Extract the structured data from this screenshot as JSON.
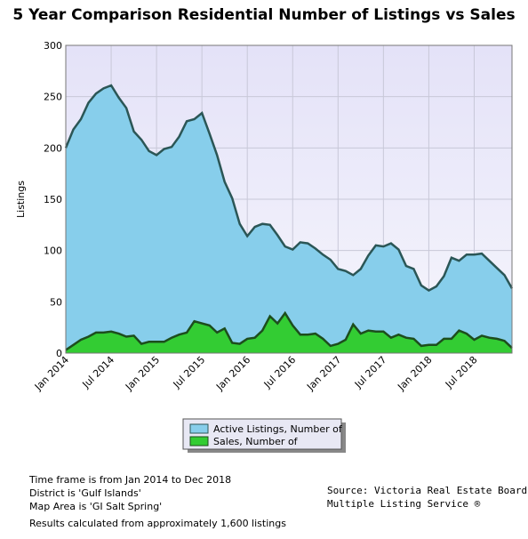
{
  "chart_data": {
    "type": "area",
    "title": "5 Year Comparison Residential Number of Listings vs Sales",
    "y_label": "Listings",
    "categories": [
      "Jan 2014",
      null,
      null,
      null,
      null,
      null,
      "Jul 2014",
      null,
      null,
      null,
      null,
      null,
      "Jan 2015",
      null,
      null,
      null,
      null,
      null,
      "Jul 2015",
      null,
      null,
      null,
      null,
      null,
      "Jan 2016",
      null,
      null,
      null,
      null,
      null,
      "Jul 2016",
      null,
      null,
      null,
      null,
      null,
      "Jan 2017",
      null,
      null,
      null,
      null,
      null,
      "Jul 2017",
      null,
      null,
      null,
      null,
      null,
      "Jan 2018",
      null,
      null,
      null,
      null,
      null,
      "Jul 2018",
      null,
      null,
      null,
      null,
      null
    ],
    "series": [
      {
        "name": "Active Listings, Number of",
        "color": "#87ceeb",
        "line_color": "#2b5656",
        "values": [
          200,
          218,
          228,
          244,
          253,
          258,
          261,
          249,
          239,
          216,
          208,
          197,
          193,
          199,
          201,
          211,
          226,
          228,
          234,
          214,
          193,
          167,
          151,
          126,
          114,
          123,
          126,
          125,
          115,
          104,
          101,
          108,
          107,
          102,
          96,
          91,
          82,
          80,
          76,
          82,
          95,
          105,
          104,
          107,
          101,
          85,
          82,
          66,
          61,
          65,
          75,
          93,
          90,
          96,
          96,
          97,
          90,
          83,
          76,
          63
        ]
      },
      {
        "name": "Sales, Number of",
        "color": "#33cc33",
        "line_color": "#1d4d1d",
        "values": [
          3,
          8,
          13,
          16,
          20,
          20,
          21,
          19,
          16,
          17,
          9,
          11,
          11,
          11,
          15,
          18,
          20,
          31,
          29,
          27,
          20,
          24,
          10,
          9,
          14,
          15,
          22,
          36,
          29,
          39,
          27,
          18,
          18,
          19,
          14,
          7,
          9,
          13,
          28,
          19,
          22,
          21,
          21,
          15,
          18,
          15,
          14,
          7,
          8,
          8,
          14,
          14,
          22,
          19,
          13,
          17,
          15,
          14,
          12,
          5
        ]
      }
    ],
    "ylim": [
      0,
      300
    ],
    "yticks": [
      0,
      50,
      100,
      150,
      200,
      250,
      300
    ],
    "grid": true
  },
  "notes": [
    "Time frame is from Jan 2014 to Dec 2018",
    "District is 'Gulf Islands'",
    "Map Area is 'GI Salt Spring'",
    "Results calculated from approximately 1,600 listings"
  ],
  "source": [
    "Source: Victoria Real Estate Board",
    "Multiple Listing Service ®"
  ]
}
